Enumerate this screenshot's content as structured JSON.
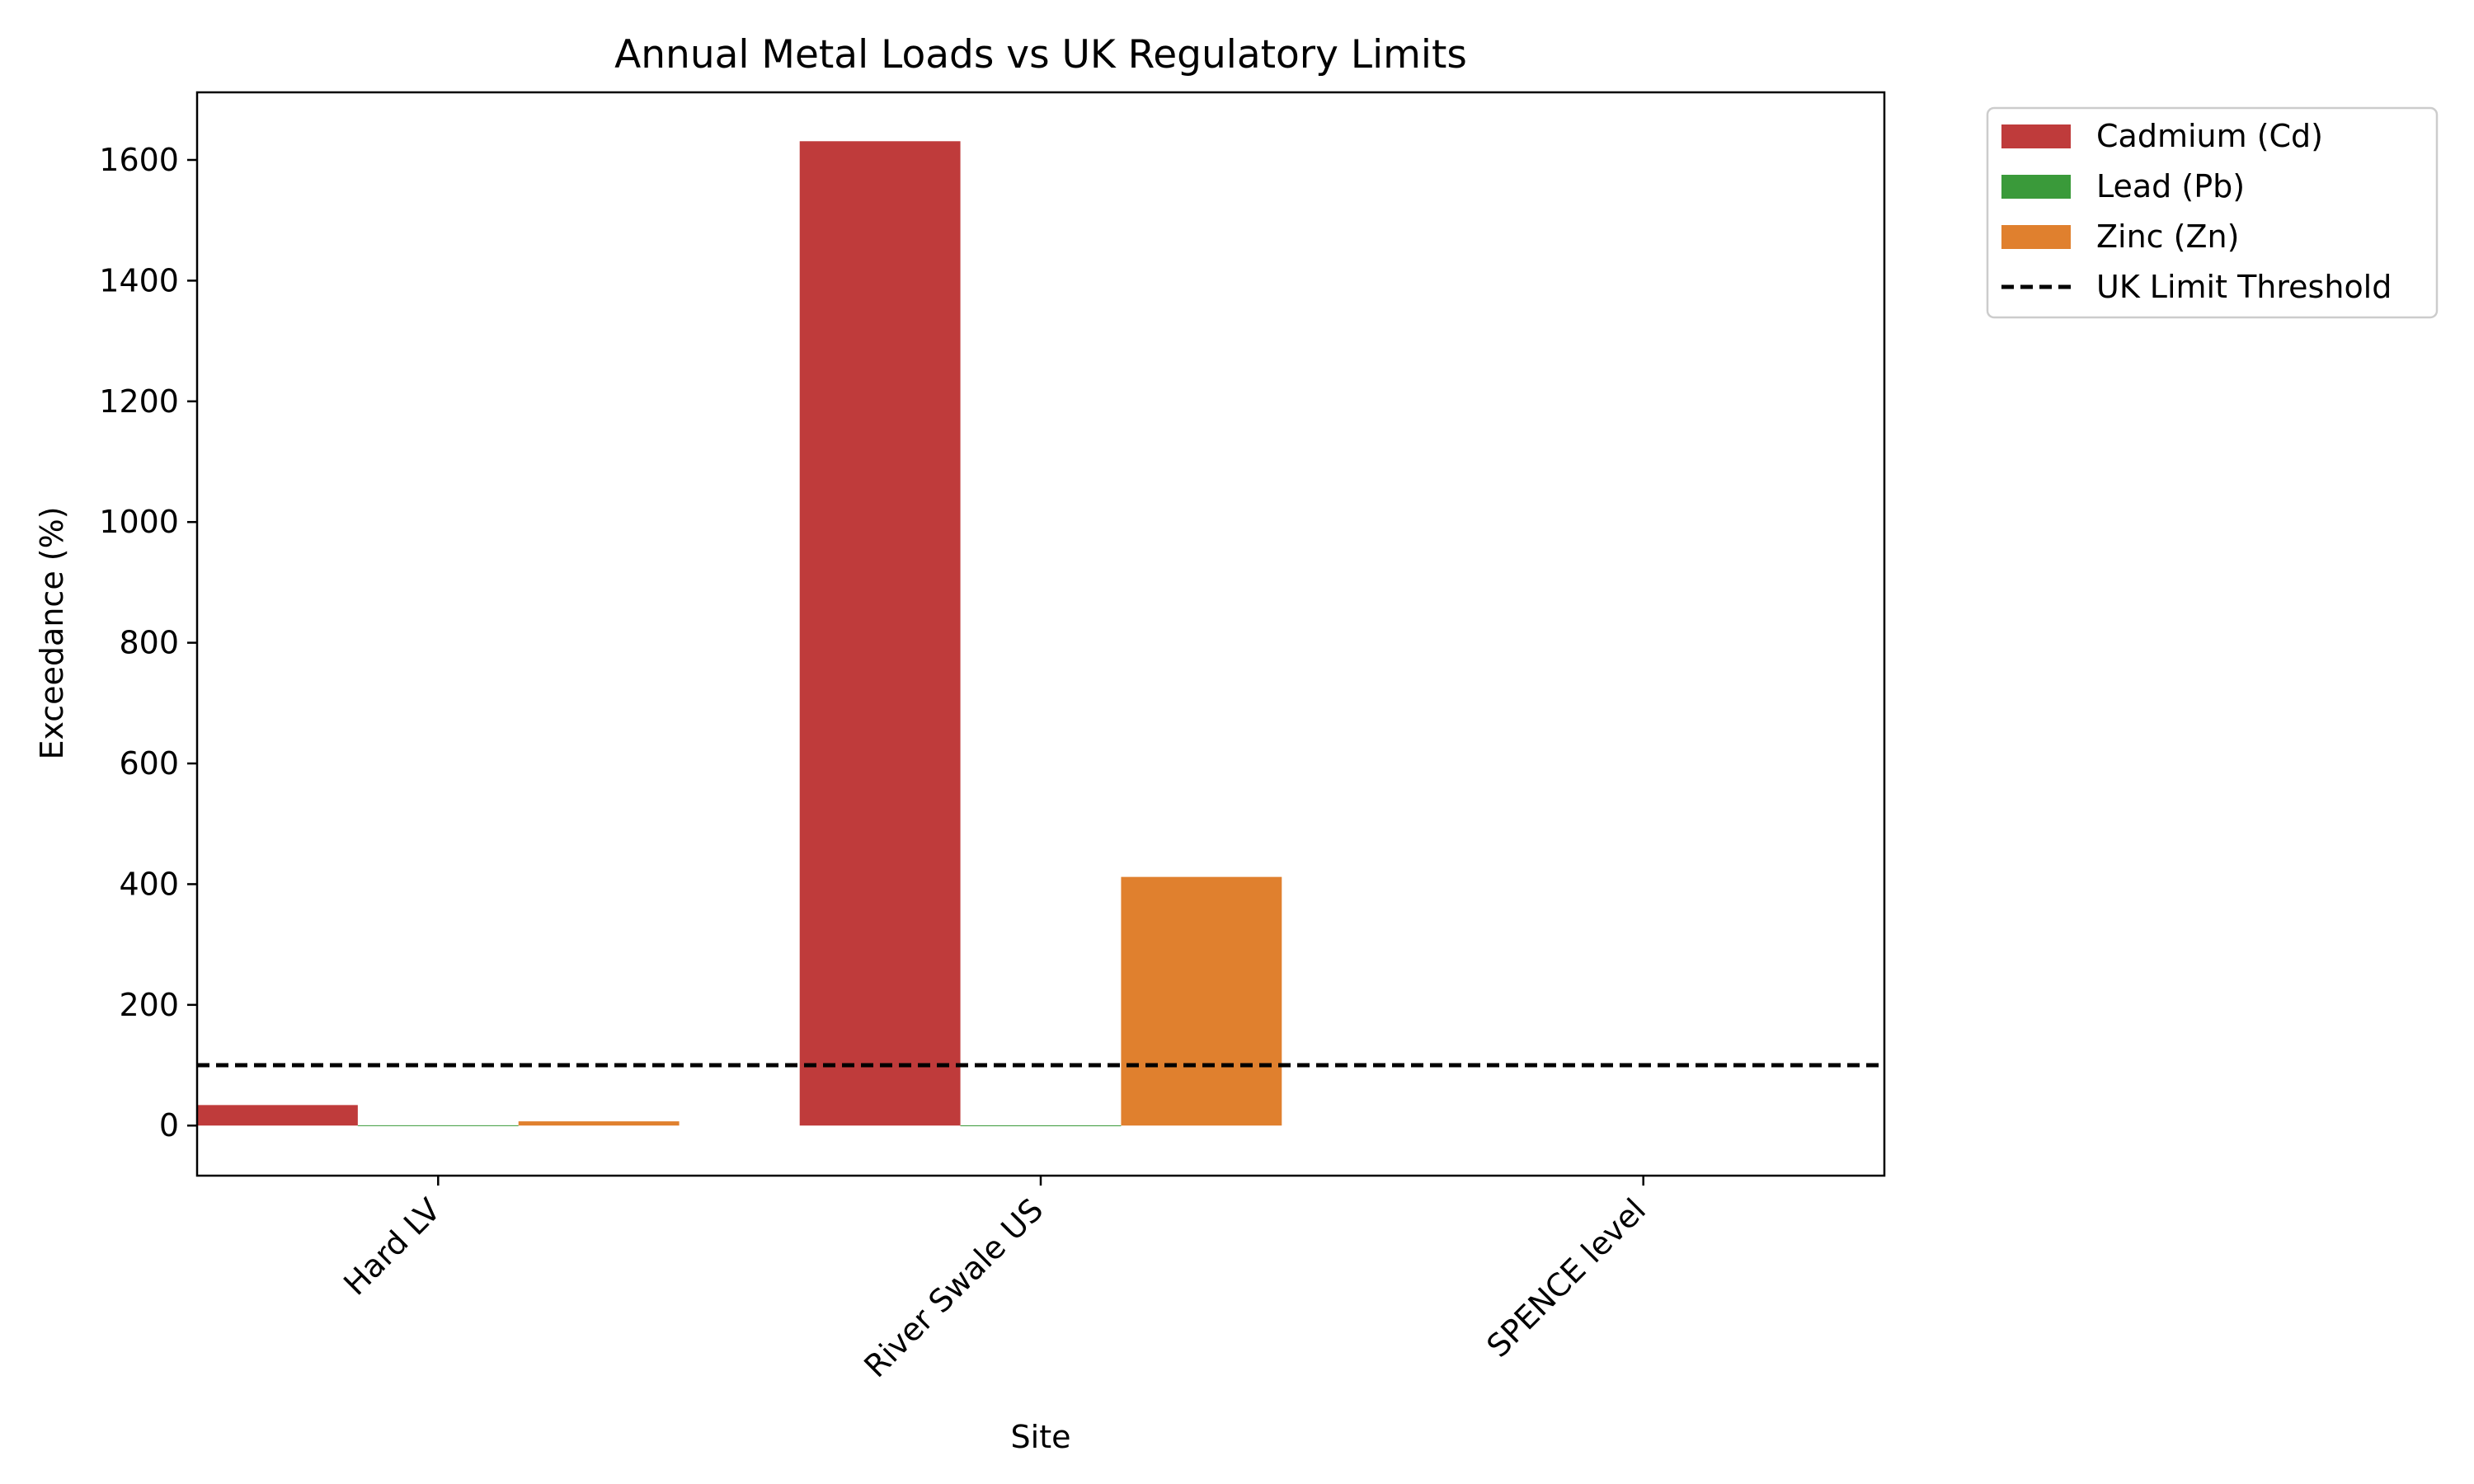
{
  "chart_data": {
    "type": "bar",
    "title": "Annual Metal Loads vs UK Regulatory Limits",
    "xlabel": "Site",
    "ylabel": "Exceedance (%)",
    "categories": [
      "Hard LV",
      "River Swale US",
      "SPENCE level"
    ],
    "series": [
      {
        "name": "Cadmium (Cd)",
        "color": "#bf3b3b",
        "values": [
          34,
          1631,
          null
        ]
      },
      {
        "name": "Lead (Pb)",
        "color": "#3a9a3a",
        "values": [
          0.5,
          0.3,
          null
        ]
      },
      {
        "name": "Zinc (Zn)",
        "color": "#e0802e",
        "values": [
          7,
          412,
          null
        ]
      }
    ],
    "reference_line": {
      "name": "UK Limit Threshold",
      "value": 100,
      "color": "#000000",
      "style": "dashed"
    },
    "ylim": [
      -83,
      1712
    ],
    "yticks": [
      0,
      200,
      400,
      600,
      800,
      1000,
      1200,
      1400,
      1600
    ],
    "xtick_rotation": -45,
    "grid": false,
    "legend_position": "outside-top-right"
  }
}
